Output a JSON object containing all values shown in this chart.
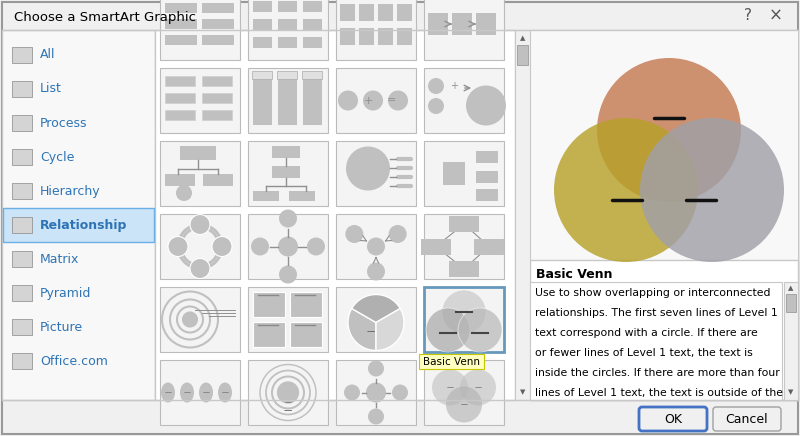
{
  "title": "Choose a SmartArt Graphic",
  "bg_dialog": "#f0f0f0",
  "bg_white": "#ffffff",
  "sidebar_bg": "#f8f8f8",
  "sidebar_selected_color": "#cce4f7",
  "sidebar_selected_edge": "#6aafe6",
  "sidebar_items": [
    "All",
    "List",
    "Process",
    "Cycle",
    "Hierarchy",
    "Relationship",
    "Matrix",
    "Pyramid",
    "Picture",
    "Office.com"
  ],
  "sidebar_item_color": "#2e74b5",
  "sidebar_selected": 5,
  "venn_circle1_color": "#c47a52",
  "venn_circle2_color": "#b8a028",
  "venn_circle3_color": "#a0a0a8",
  "desc_title": "Basic Venn",
  "desc_text_line1": "Use to show overlapping or interconnected",
  "desc_text_line2": "relationships. The first seven lines of Level 1",
  "desc_text_line3": "text correspond with a circle. If there are",
  "desc_text_line4": "or fewer lines of Level 1 text, the text is",
  "desc_text_line5": "inside the circles. If there are more than four",
  "desc_text_line6": "lines of Level 1 text, the text is outside of the",
  "tooltip_text": "Basic Venn",
  "ok_text": "OK",
  "cancel_text": "Cancel",
  "border_color": "#c8c8c8",
  "border_dark": "#999999",
  "blue_border": "#4472c4",
  "text_color": "#000000",
  "gray_shape": "#c0c0c0",
  "gray_dark": "#909090",
  "gray_light": "#e0e0e0",
  "thumb_bg": "#f0f0f0",
  "thumb_ec": "#c0c0c0"
}
